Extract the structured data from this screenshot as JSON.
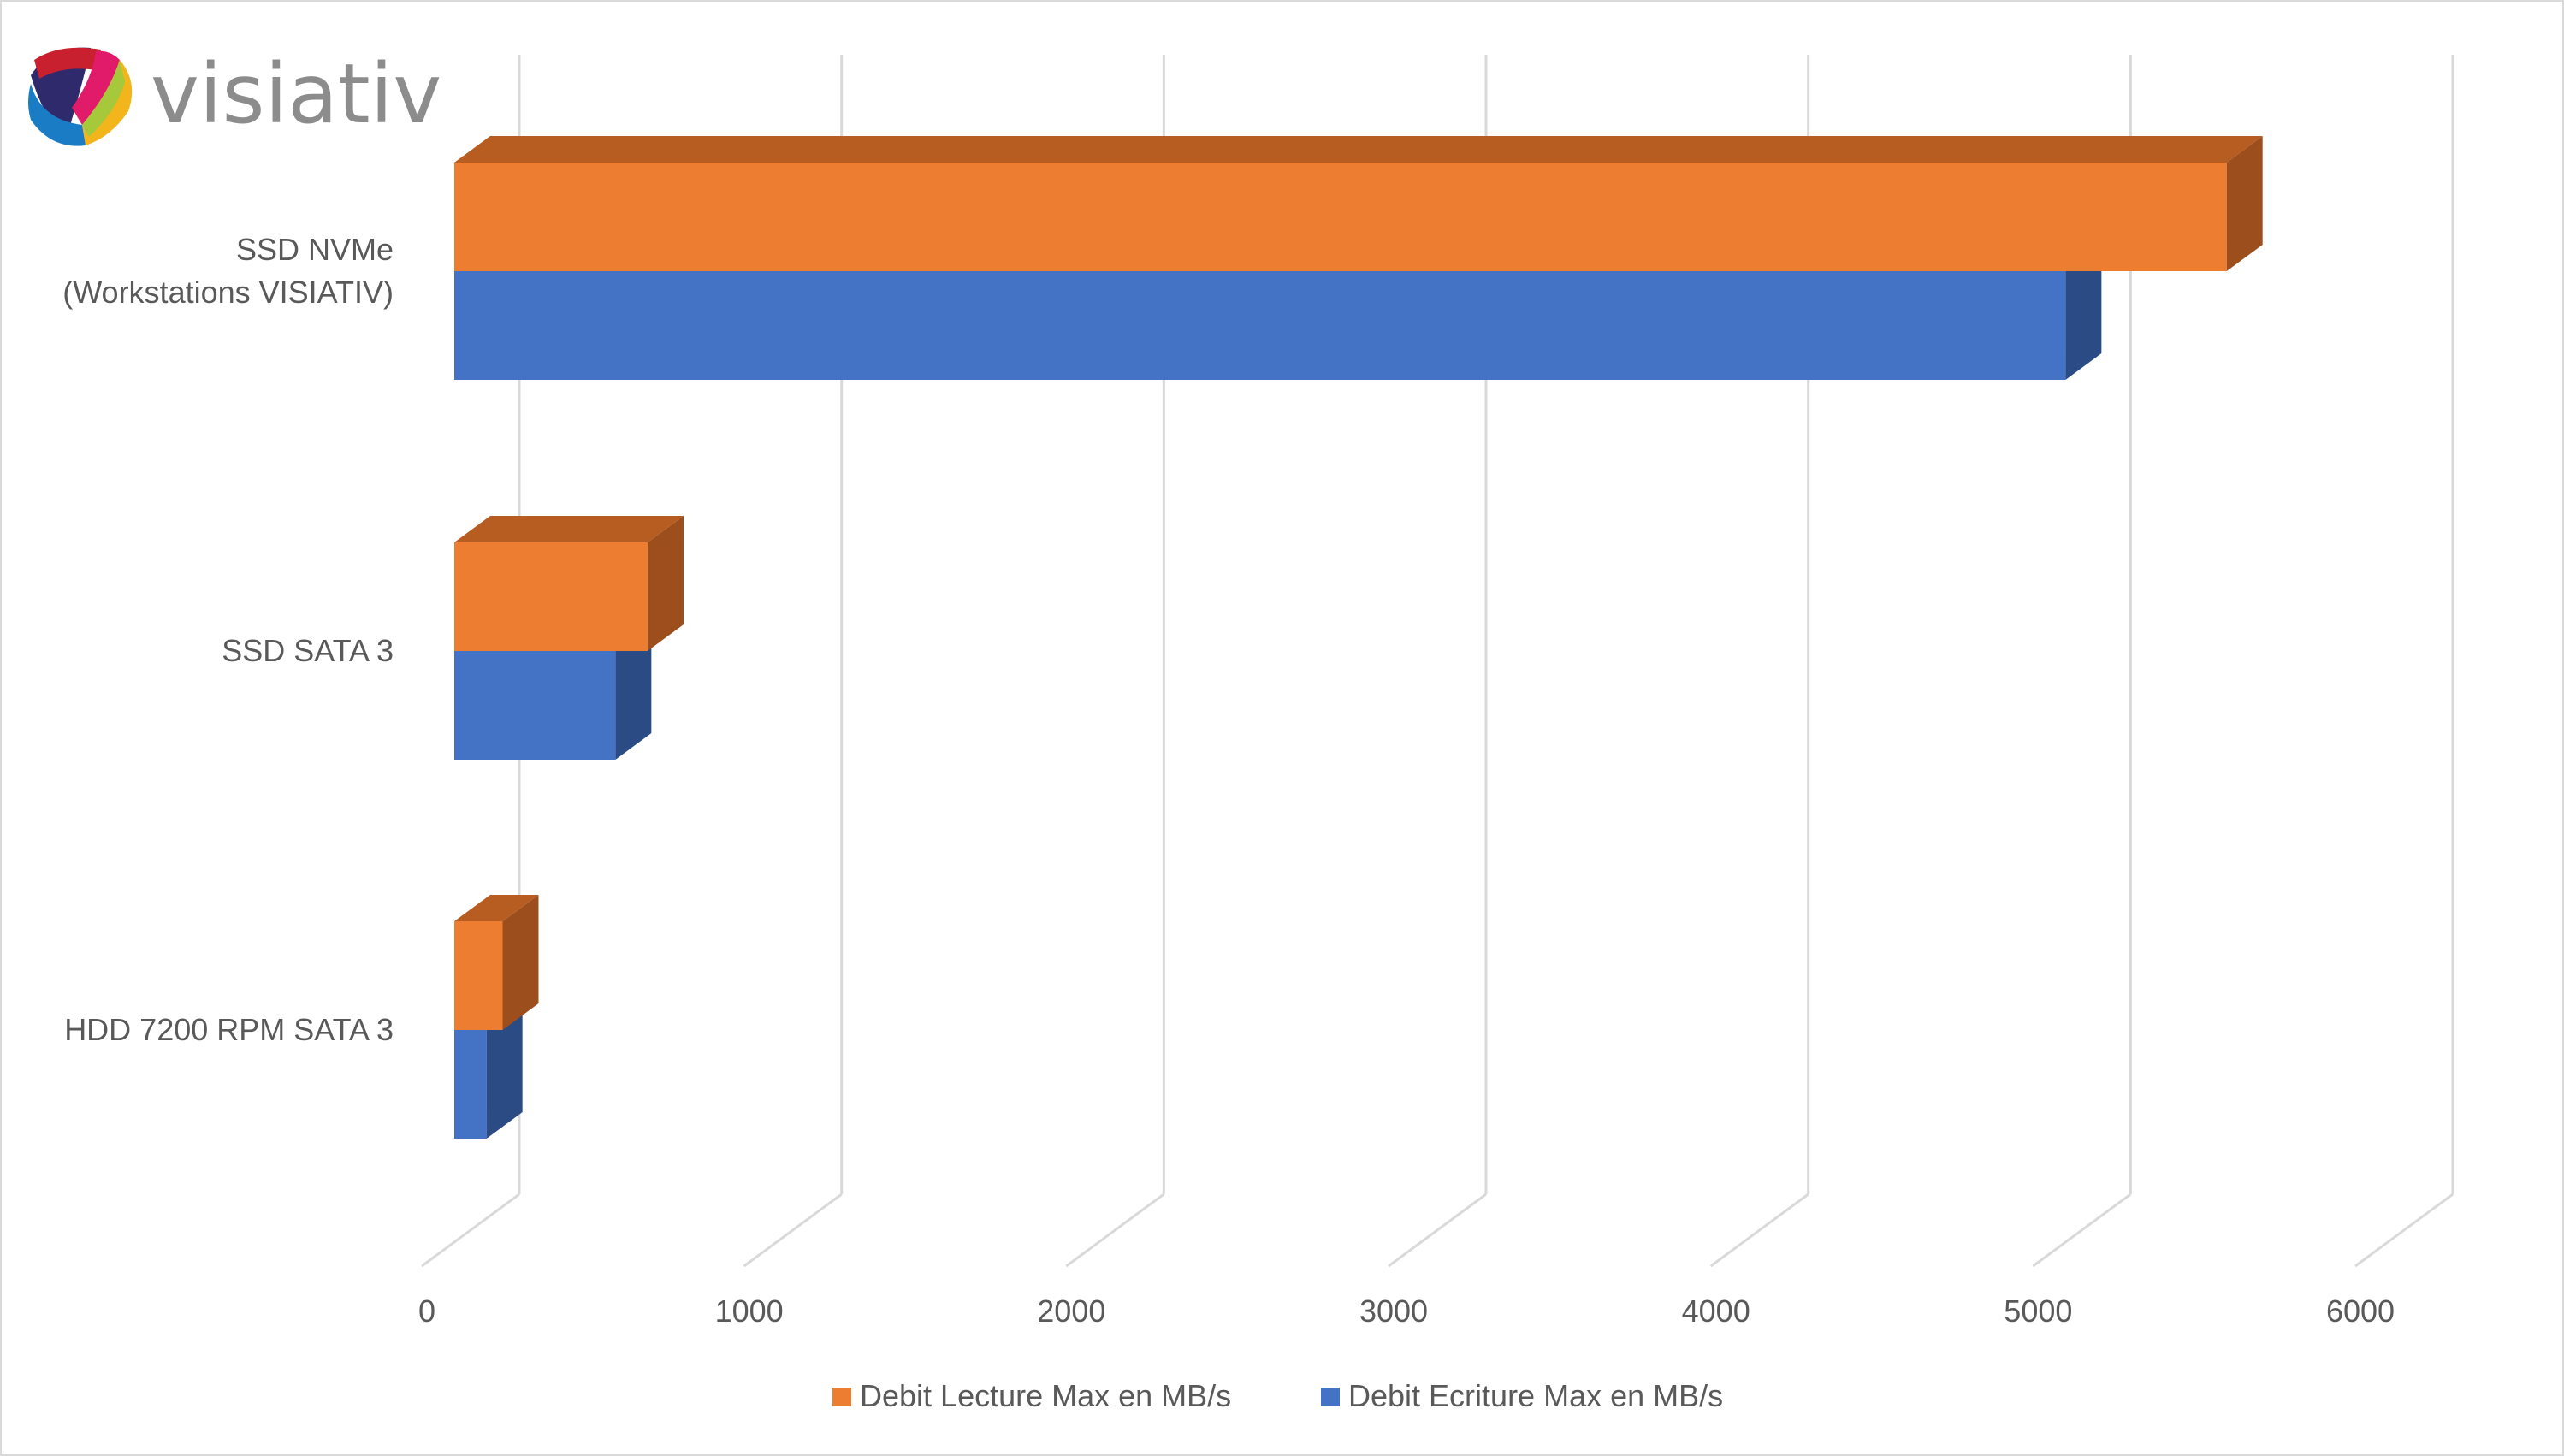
{
  "logo": {
    "text": "visiativ"
  },
  "chart_data": {
    "type": "bar",
    "orientation": "horizontal",
    "style": "3d",
    "categories": [
      "SSD NVMe\n(Workstations VISIATIV)",
      "SSD SATA 3",
      "HDD 7200 RPM SATA 3"
    ],
    "series": [
      {
        "name": "Debit Lecture Max en MB/s",
        "values": [
          5500,
          600,
          150
        ],
        "color": "#ed7d31",
        "top_color": "#b85d22",
        "side_color": "#9c4f1d"
      },
      {
        "name": "Debit Ecriture Max en MB/s",
        "values": [
          5000,
          500,
          100
        ],
        "color": "#4472c4",
        "side_color": "#2b4b85"
      }
    ],
    "x_ticks": [
      0,
      1000,
      2000,
      3000,
      4000,
      5000,
      6000
    ],
    "xlim": [
      0,
      6000
    ],
    "grid": true,
    "legend_position": "bottom",
    "title": "",
    "xlabel": "",
    "ylabel": ""
  }
}
